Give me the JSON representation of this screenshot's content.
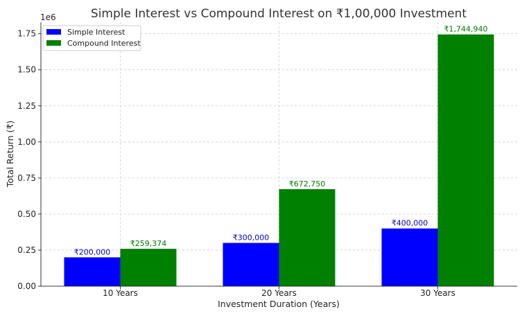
{
  "chart_data": {
    "type": "bar",
    "title": "Simple Interest vs Compound Interest on ₹1,00,000 Investment",
    "xlabel": "Investment Duration (Years)",
    "ylabel": "Total Return (₹)",
    "y_offset_label": "1e6",
    "categories": [
      "10 Years",
      "20 Years",
      "30 Years"
    ],
    "series": [
      {
        "name": "Simple Interest",
        "color": "#0000ff",
        "label_color": "#0000cc",
        "values": [
          200000,
          300000,
          400000
        ],
        "labels": [
          "₹200,000",
          "₹300,000",
          "₹400,000"
        ]
      },
      {
        "name": "Compound Interest",
        "color": "#008000",
        "label_color": "#007700",
        "values": [
          259374,
          672750,
          1744940
        ],
        "labels": [
          "₹259,374",
          "₹672,750",
          "₹1,744,940"
        ]
      }
    ],
    "ylim": [
      0,
      1830000
    ],
    "yticks": [
      0,
      250000,
      500000,
      750000,
      1000000,
      1250000,
      1500000,
      1750000
    ],
    "ytick_labels": [
      "0.00",
      "0.25",
      "0.50",
      "0.75",
      "1.00",
      "1.25",
      "1.50",
      "1.75"
    ],
    "grid": true,
    "legend_position": "top-left"
  }
}
